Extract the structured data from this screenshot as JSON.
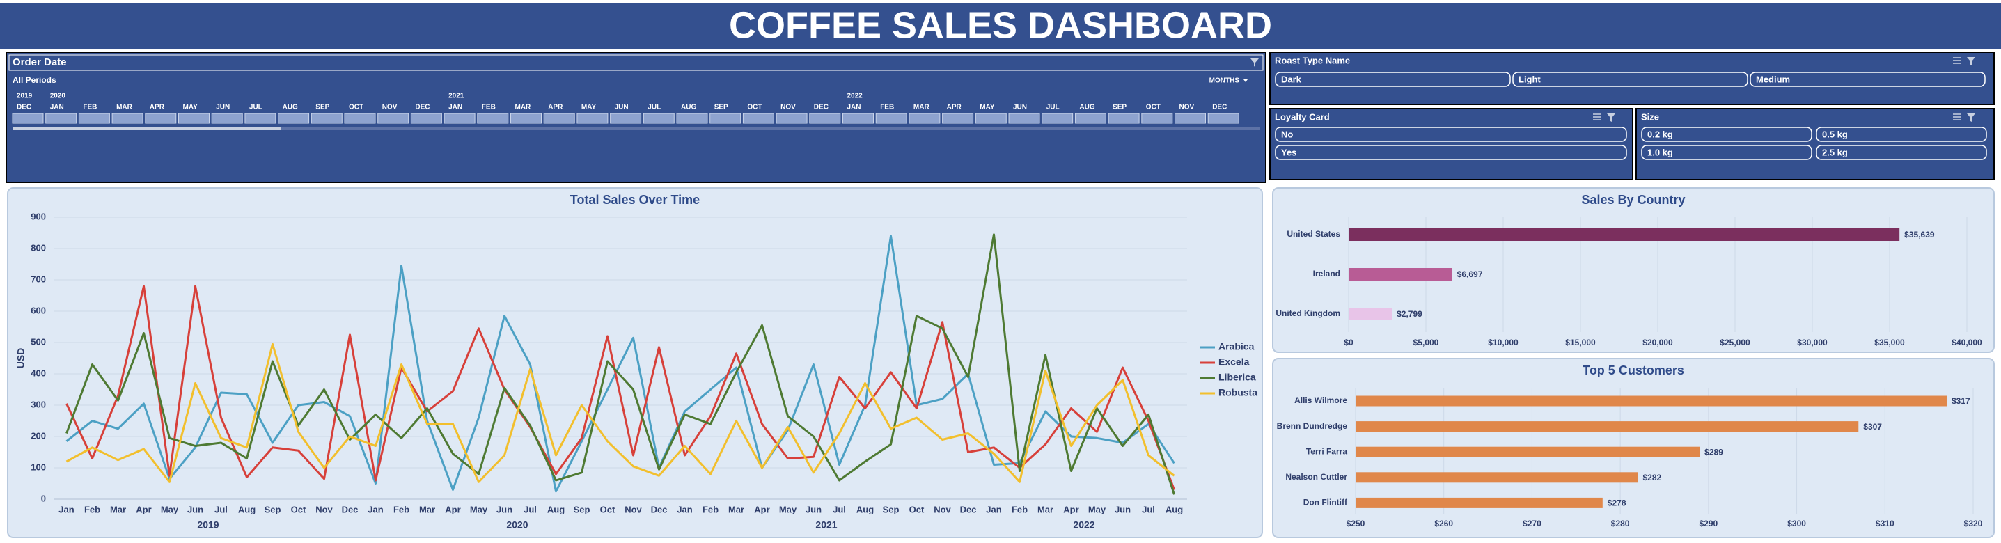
{
  "header": {
    "title": "COFFEE SALES DASHBOARD"
  },
  "timeline": {
    "title": "Order Date",
    "period": "All Periods",
    "level": "MONTHS",
    "years": [
      {
        "label": "2019",
        "months": [
          "DEC"
        ]
      },
      {
        "label": "2020",
        "months": [
          "JAN",
          "FEB",
          "MAR",
          "APR",
          "MAY",
          "JUN",
          "JUL",
          "AUG",
          "SEP",
          "OCT",
          "NOV",
          "DEC"
        ]
      },
      {
        "label": "2021",
        "months": [
          "JAN",
          "FEB",
          "MAR",
          "APR",
          "MAY",
          "JUN",
          "JUL",
          "AUG",
          "SEP",
          "OCT",
          "NOV",
          "DEC"
        ]
      },
      {
        "label": "2022",
        "months": [
          "JAN",
          "FEB",
          "MAR",
          "APR",
          "MAY",
          "JUN",
          "JUL",
          "AUG",
          "SEP",
          "OCT",
          "NOV",
          "DEC"
        ]
      }
    ]
  },
  "slicers": [
    {
      "title": "Roast Type Name",
      "items": [
        "Dark",
        "Light",
        "Medium"
      ]
    },
    {
      "title": "Loyalty Card",
      "items": [
        "No",
        "Yes"
      ]
    },
    {
      "title": "Size",
      "items": [
        "0.2 kg",
        "0.5 kg",
        "1.0 kg",
        "2.5 kg"
      ]
    }
  ],
  "chart_data": [
    {
      "type": "line",
      "title": "Total Sales Over Time",
      "y_label": "USD",
      "categories": [
        "Jan",
        "Feb",
        "Mar",
        "Apr",
        "May",
        "Jun",
        "Jul",
        "Aug",
        "Sep",
        "Oct",
        "Nov",
        "Dec",
        "Jan",
        "Feb",
        "Mar",
        "Apr",
        "May",
        "Jun",
        "Jul",
        "Aug",
        "Sep",
        "Oct",
        "Nov",
        "Dec",
        "Jan",
        "Feb",
        "Mar",
        "Apr",
        "May",
        "Jun",
        "Jul",
        "Aug",
        "Sep",
        "Oct",
        "Nov",
        "Dec",
        "Jan",
        "Feb",
        "Mar",
        "Apr",
        "May",
        "Jun",
        "Jul",
        "Aug"
      ],
      "category_groups": [
        "2019",
        "2020",
        "2021",
        "2022"
      ],
      "ylim": [
        0,
        900
      ],
      "yticks": [
        0,
        100,
        200,
        300,
        400,
        500,
        600,
        700,
        800,
        900
      ],
      "grid": true,
      "legend": "right",
      "series": [
        {
          "name": "Arabica",
          "color": "#4ca0c4",
          "values": [
            185,
            250,
            225,
            305,
            65,
            165,
            340,
            335,
            180,
            300,
            310,
            265,
            50,
            745,
            250,
            30,
            260,
            585,
            430,
            25,
            185,
            350,
            515,
            100,
            280,
            350,
            420,
            100,
            220,
            430,
            110,
            300,
            840,
            300,
            320,
            400,
            110,
            115,
            280,
            200,
            195,
            180,
            240,
            115
          ]
        },
        {
          "name": "Excela",
          "color": "#d7403a",
          "values": [
            305,
            130,
            330,
            680,
            75,
            680,
            260,
            70,
            165,
            155,
            65,
            525,
            60,
            420,
            280,
            345,
            545,
            350,
            230,
            80,
            195,
            520,
            140,
            485,
            140,
            265,
            465,
            240,
            130,
            135,
            390,
            290,
            405,
            290,
            565,
            150,
            165,
            100,
            175,
            290,
            215,
            420,
            250,
            30
          ]
        },
        {
          "name": "Liberica",
          "color": "#4e7a33",
          "values": [
            210,
            430,
            315,
            530,
            195,
            170,
            180,
            130,
            440,
            235,
            350,
            190,
            270,
            195,
            290,
            145,
            80,
            355,
            235,
            60,
            85,
            440,
            350,
            95,
            270,
            240,
            405,
            555,
            265,
            200,
            60,
            120,
            175,
            585,
            545,
            390,
            845,
            90,
            460,
            90,
            290,
            170,
            270,
            15
          ]
        },
        {
          "name": "Robusta",
          "color": "#f2bf2d",
          "values": [
            120,
            165,
            125,
            160,
            55,
            370,
            195,
            165,
            495,
            215,
            100,
            200,
            170,
            430,
            240,
            240,
            55,
            140,
            415,
            140,
            300,
            185,
            105,
            75,
            170,
            80,
            250,
            100,
            230,
            85,
            210,
            370,
            225,
            260,
            190,
            210,
            145,
            55,
            410,
            170,
            300,
            380,
            140,
            75
          ]
        }
      ]
    },
    {
      "type": "barh",
      "title": "Sales By Country",
      "categories": [
        "United States",
        "Ireland",
        "United Kingdom"
      ],
      "values": [
        35639,
        6697,
        2799
      ],
      "value_labels": [
        "$35,639",
        "$6,697",
        "$2,799"
      ],
      "colors": [
        "#7b2f5e",
        "#b85c95",
        "#e8c4e8"
      ],
      "xlim": [
        0,
        40000
      ],
      "xticks": [
        {
          "value": 0,
          "label": "$0"
        },
        {
          "value": 5000,
          "label": "$5,000"
        },
        {
          "value": 10000,
          "label": "$10,000"
        },
        {
          "value": 15000,
          "label": "$15,000"
        },
        {
          "value": 20000,
          "label": "$20,000"
        },
        {
          "value": 25000,
          "label": "$25,000"
        },
        {
          "value": 30000,
          "label": "$30,000"
        },
        {
          "value": 35000,
          "label": "$35,000"
        },
        {
          "value": 40000,
          "label": "$40,000"
        }
      ],
      "grid": true
    },
    {
      "type": "barh",
      "title": "Top 5 Customers",
      "categories": [
        "Allis Wilmore",
        "Brenn Dundredge",
        "Terri Farra",
        "Nealson Cuttler",
        "Don Flintiff"
      ],
      "values": [
        317,
        307,
        289,
        282,
        278
      ],
      "value_labels": [
        "$317",
        "$307",
        "$289",
        "$282",
        "$278"
      ],
      "color": "#e0874a",
      "xlim": [
        250,
        320
      ],
      "xticks": [
        {
          "value": 250,
          "label": "$250"
        },
        {
          "value": 260,
          "label": "$260"
        },
        {
          "value": 270,
          "label": "$270"
        },
        {
          "value": 280,
          "label": "$280"
        },
        {
          "value": 290,
          "label": "$290"
        },
        {
          "value": 300,
          "label": "$300"
        },
        {
          "value": 310,
          "label": "$310"
        },
        {
          "value": 320,
          "label": "$320"
        }
      ],
      "grid": true
    }
  ]
}
